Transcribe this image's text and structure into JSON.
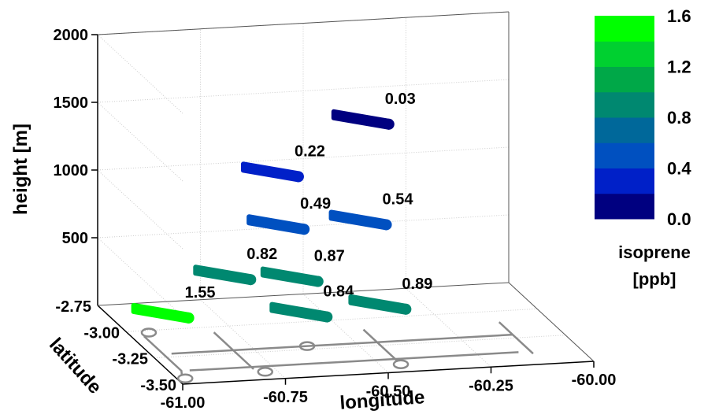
{
  "chart_data": {
    "type": "scatter",
    "projection": "3d",
    "xlabel": "longitude",
    "ylabel": "latitude",
    "zlabel": "height [m]",
    "xlim": [
      -61.0,
      -60.0
    ],
    "ylim": [
      -3.5,
      -2.75
    ],
    "zlim": [
      0,
      2000
    ],
    "x_ticks": [
      "-61.00",
      "-60.75",
      "-60.50",
      "-60.25",
      "-60.00"
    ],
    "y_ticks": [
      "-2.75",
      "-3.00",
      "-3.25",
      "-3.50"
    ],
    "z_ticks": [
      "500",
      "1000",
      "1500",
      "2000"
    ],
    "grid": true,
    "colorbar": {
      "title": [
        "isoprene",
        "[ppb]"
      ],
      "ticks": [
        "0.0",
        "0.4",
        "0.8",
        "1.2",
        "1.6"
      ],
      "range": [
        0,
        1.6
      ],
      "levels": 8,
      "colors": [
        "#000080",
        "#0020c8",
        "#0050c0",
        "#00689a",
        "#008870",
        "#00a848",
        "#00d030",
        "#00ff00"
      ]
    },
    "points": [
      {
        "label": "1.55",
        "value": 1.55,
        "lon": -60.92,
        "lat": -3.02,
        "height": 150
      },
      {
        "label": "0.84",
        "value": 0.84,
        "lon": -60.6,
        "lat": -3.08,
        "height": 150
      },
      {
        "label": "0.89",
        "value": 0.89,
        "lon": -60.4,
        "lat": -3.05,
        "height": 150
      },
      {
        "label": "0.82",
        "value": 0.82,
        "lon": -60.75,
        "lat": -2.95,
        "height": 350
      },
      {
        "label": "0.87",
        "value": 0.87,
        "lon": -60.6,
        "lat": -3.0,
        "height": 350
      },
      {
        "label": "0.49",
        "value": 0.49,
        "lon": -60.62,
        "lat": -2.95,
        "height": 700
      },
      {
        "label": "0.54",
        "value": 0.54,
        "lon": -60.42,
        "lat": -2.95,
        "height": 700
      },
      {
        "label": "0.22",
        "value": 0.22,
        "lon": -60.62,
        "lat": -2.9,
        "height": 1050
      },
      {
        "label": "0.03",
        "value": 0.03,
        "lon": -60.4,
        "lat": -2.9,
        "height": 1400
      }
    ]
  }
}
